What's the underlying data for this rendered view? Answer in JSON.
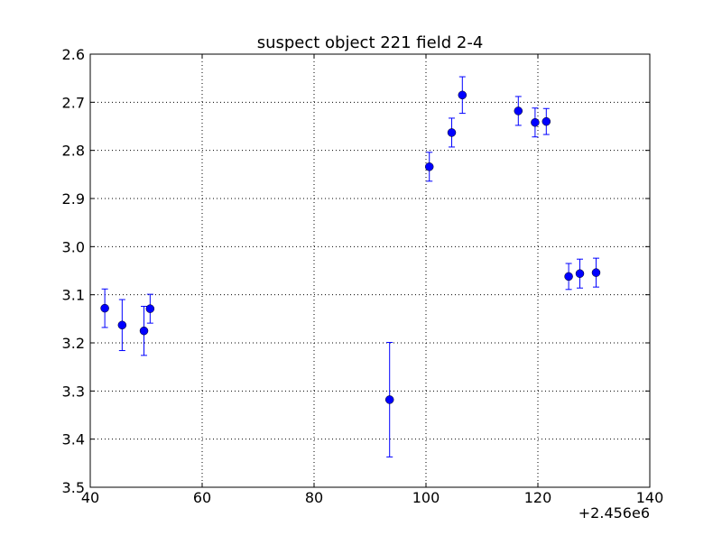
{
  "chart_data": {
    "type": "scatter",
    "title": "suspect object 221 field 2-4",
    "xlabel": "",
    "ylabel": "",
    "x_offset_label": "+2.456e6",
    "xlim": [
      40,
      140
    ],
    "ylim": [
      3.5,
      2.6
    ],
    "y_inverted": true,
    "grid": true,
    "x_ticks": [
      "40",
      "60",
      "80",
      "100",
      "120",
      "140"
    ],
    "y_ticks": [
      "2.6",
      "2.7",
      "2.8",
      "2.9",
      "3.0",
      "3.1",
      "3.2",
      "3.3",
      "3.4",
      "3.5"
    ],
    "series": [
      {
        "color": "#0000ff",
        "marker": "circle",
        "errorbars": "vertical",
        "points": [
          {
            "x": 42.6,
            "y": 3.128,
            "err": 0.04
          },
          {
            "x": 45.7,
            "y": 3.163,
            "err": 0.053
          },
          {
            "x": 49.6,
            "y": 3.175,
            "err": 0.051
          },
          {
            "x": 50.7,
            "y": 3.129,
            "err": 0.03
          },
          {
            "x": 93.5,
            "y": 3.318,
            "err": 0.119
          },
          {
            "x": 100.6,
            "y": 2.834,
            "err": 0.03
          },
          {
            "x": 104.6,
            "y": 2.763,
            "err": 0.03
          },
          {
            "x": 106.5,
            "y": 2.685,
            "err": 0.038
          },
          {
            "x": 116.5,
            "y": 2.718,
            "err": 0.03
          },
          {
            "x": 119.5,
            "y": 2.742,
            "err": 0.03
          },
          {
            "x": 121.5,
            "y": 2.74,
            "err": 0.027
          },
          {
            "x": 125.5,
            "y": 3.062,
            "err": 0.027
          },
          {
            "x": 127.5,
            "y": 3.056,
            "err": 0.03
          },
          {
            "x": 130.4,
            "y": 3.054,
            "err": 0.03
          }
        ]
      }
    ]
  }
}
